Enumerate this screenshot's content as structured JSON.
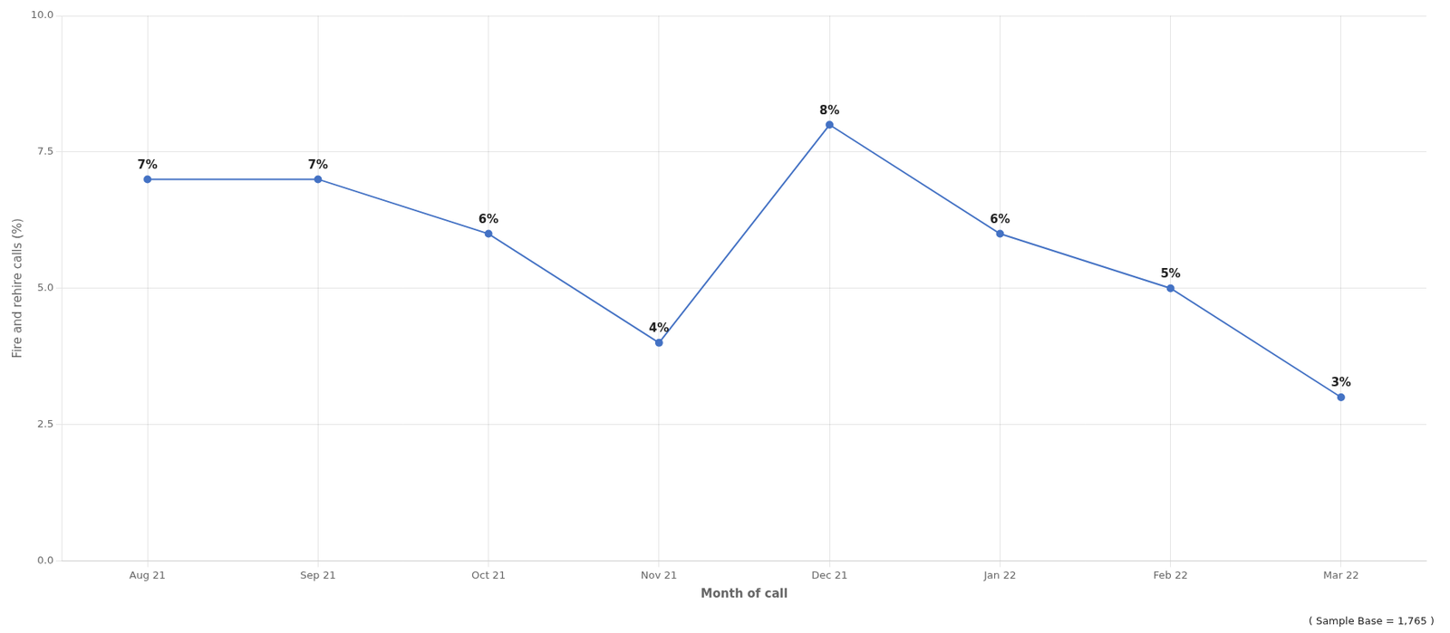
{
  "chart_data": {
    "type": "line",
    "categories": [
      "Aug 21",
      "Sep 21",
      "Oct 21",
      "Nov 21",
      "Dec 21",
      "Jan 22",
      "Feb 22",
      "Mar 22"
    ],
    "values": [
      7,
      7,
      6,
      4,
      8,
      6,
      5,
      3
    ],
    "value_labels": [
      "7%",
      "7%",
      "6%",
      "4%",
      "8%",
      "6%",
      "5%",
      "3%"
    ],
    "data_labels": true,
    "color": "#4472C4",
    "marker": "circle",
    "line_style": "solid",
    "x_label": "Month of call",
    "y_label": "Fire and rehire calls (%)",
    "ylim": [
      0,
      10
    ],
    "yticks": [
      {
        "value": 0,
        "label": "0.0"
      },
      2.5,
      {
        "value": 5,
        "label": "5.0"
      },
      7.5,
      {
        "value": 10,
        "label": "10.0"
      }
    ],
    "grid": true,
    "annotations": [
      "( Sample Base = 1,765 )"
    ]
  }
}
